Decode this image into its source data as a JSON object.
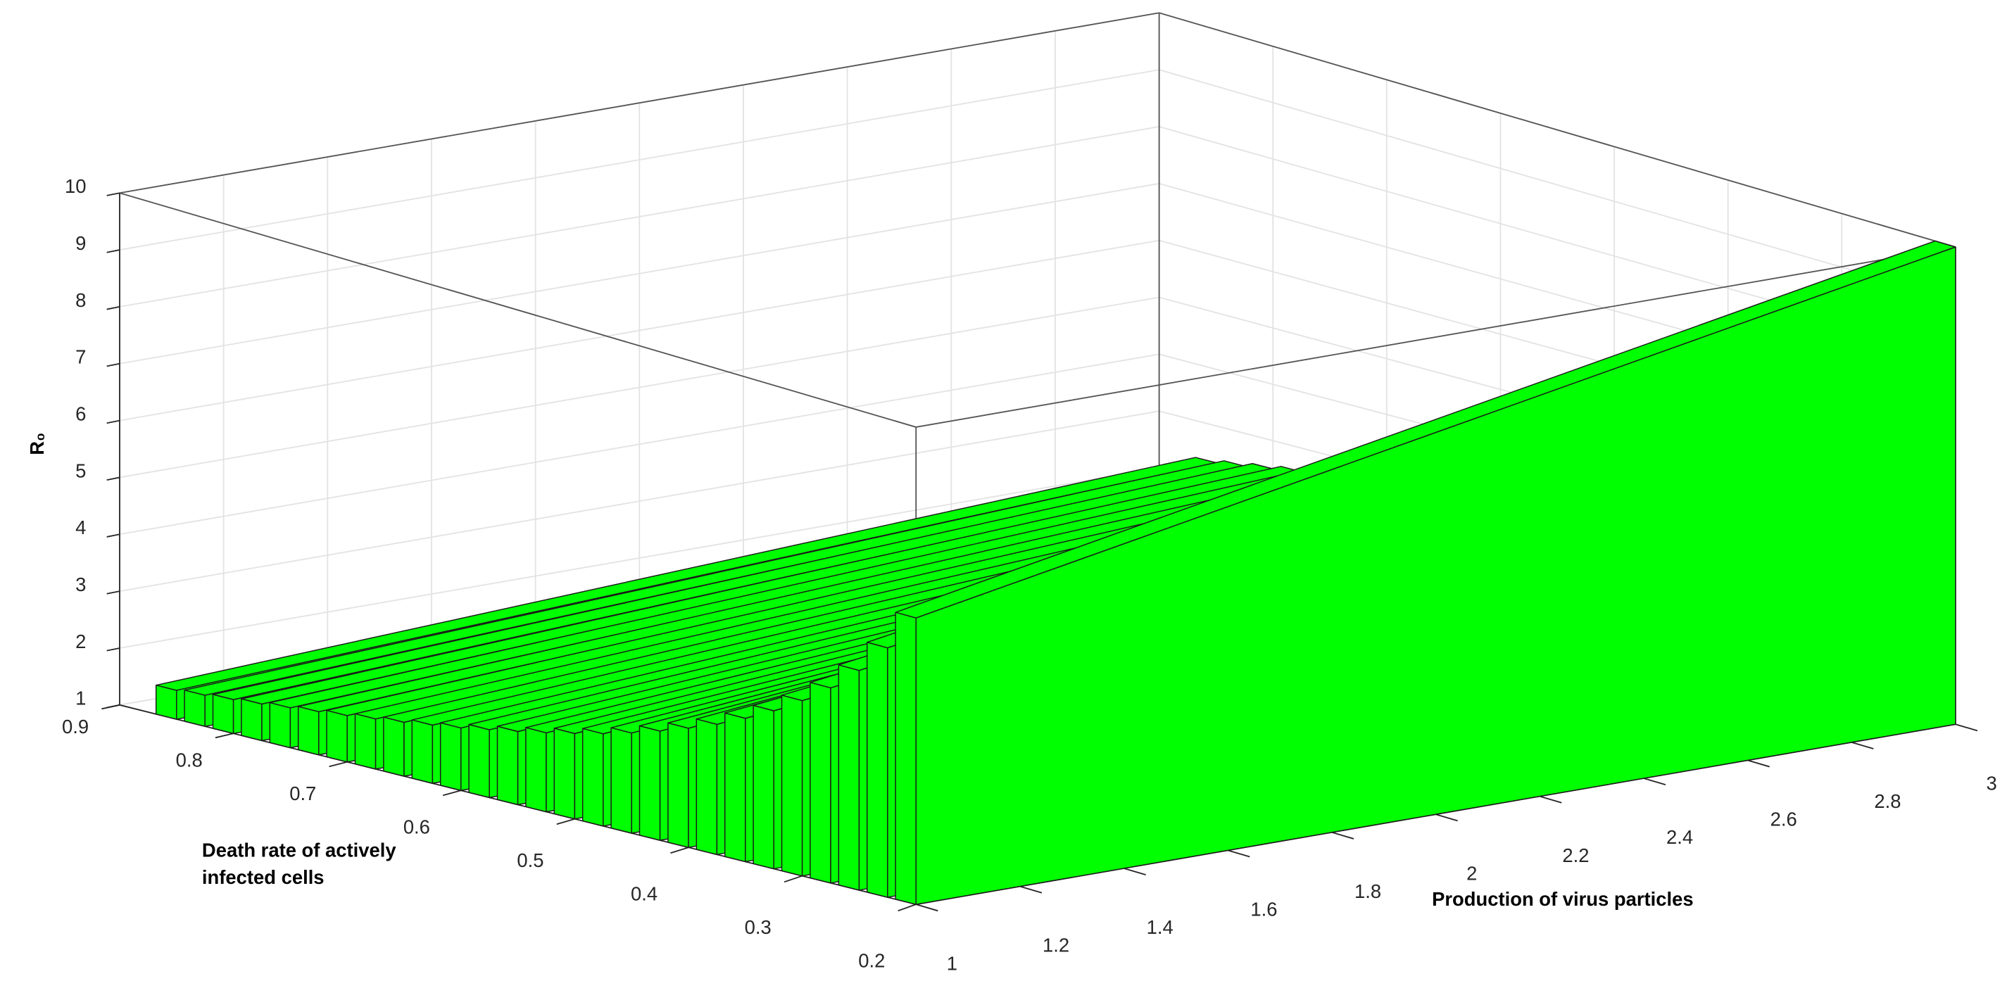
{
  "chart_data": {
    "type": "ribbon3d",
    "x_label": "Production of virus particles",
    "y_label": [
      "Death rate of actively",
      "infected cells"
    ],
    "z_label": "R₀",
    "x": [
      1,
      3
    ],
    "xlim": [
      1,
      3
    ],
    "xticks": [
      1,
      1.2,
      1.4,
      1.6,
      1.8,
      2,
      2.2,
      2.4,
      2.6,
      2.8,
      3
    ],
    "ylim": [
      0.2,
      0.9
    ],
    "yticks": [
      0.2,
      0.3,
      0.4,
      0.5,
      0.6,
      0.7,
      0.8,
      0.9
    ],
    "zlim": [
      1,
      10
    ],
    "zticks": [
      1,
      2,
      3,
      4,
      5,
      6,
      7,
      8,
      9,
      10
    ],
    "grid": true,
    "color": "#00ff00",
    "ribbons": [
      {
        "death_rate": 0.2,
        "values": [
          6.4,
          10
        ]
      },
      {
        "death_rate": 0.225,
        "values": [
          5.69,
          8.89
        ]
      },
      {
        "death_rate": 0.25,
        "values": [
          5.12,
          8
        ]
      },
      {
        "death_rate": 0.275,
        "values": [
          4.65,
          7.27
        ]
      },
      {
        "death_rate": 0.3,
        "values": [
          4.27,
          6.67
        ]
      },
      {
        "death_rate": 0.325,
        "values": [
          3.94,
          6.15
        ]
      },
      {
        "death_rate": 0.35,
        "values": [
          3.66,
          5.71
        ]
      },
      {
        "death_rate": 0.375,
        "values": [
          3.41,
          5.33
        ]
      },
      {
        "death_rate": 0.4,
        "values": [
          3.2,
          5
        ]
      },
      {
        "death_rate": 0.425,
        "values": [
          3.01,
          4.71
        ]
      },
      {
        "death_rate": 0.45,
        "values": [
          2.84,
          4.44
        ]
      },
      {
        "death_rate": 0.475,
        "values": [
          2.69,
          4.21
        ]
      },
      {
        "death_rate": 0.5,
        "values": [
          2.56,
          4
        ]
      },
      {
        "death_rate": 0.525,
        "values": [
          2.44,
          3.81
        ]
      },
      {
        "death_rate": 0.55,
        "values": [
          2.33,
          3.64
        ]
      },
      {
        "death_rate": 0.575,
        "values": [
          2.23,
          3.48
        ]
      },
      {
        "death_rate": 0.6,
        "values": [
          2.13,
          3.33
        ]
      },
      {
        "death_rate": 0.625,
        "values": [
          2.05,
          3.2
        ]
      },
      {
        "death_rate": 0.65,
        "values": [
          1.97,
          3.08
        ]
      },
      {
        "death_rate": 0.675,
        "values": [
          1.9,
          2.96
        ]
      },
      {
        "death_rate": 0.7,
        "values": [
          1.83,
          2.86
        ]
      },
      {
        "death_rate": 0.725,
        "values": [
          1.77,
          2.76
        ]
      },
      {
        "death_rate": 0.75,
        "values": [
          1.71,
          2.67
        ]
      },
      {
        "death_rate": 0.775,
        "values": [
          1.65,
          2.58
        ]
      },
      {
        "death_rate": 0.8,
        "values": [
          1.6,
          2.5
        ]
      },
      {
        "death_rate": 0.825,
        "values": [
          1.55,
          2.42
        ]
      },
      {
        "death_rate": 0.85,
        "values": [
          1.51,
          2.35
        ]
      }
    ]
  }
}
